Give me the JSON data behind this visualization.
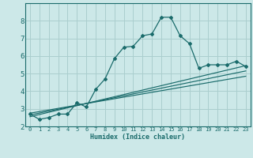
{
  "title": "",
  "xlabel": "Humidex (Indice chaleur)",
  "ylabel": "",
  "bg_color": "#cce8e8",
  "grid_color": "#aacece",
  "line_color": "#1a6b6b",
  "xlim": [
    -0.5,
    23.5
  ],
  "ylim": [
    2,
    9
  ],
  "yticks": [
    2,
    3,
    4,
    5,
    6,
    7,
    8
  ],
  "xticks": [
    0,
    1,
    2,
    3,
    4,
    5,
    6,
    7,
    8,
    9,
    10,
    11,
    12,
    13,
    14,
    15,
    16,
    17,
    18,
    19,
    20,
    21,
    22,
    23
  ],
  "main_x": [
    0,
    1,
    2,
    3,
    4,
    5,
    6,
    7,
    8,
    9,
    10,
    11,
    12,
    13,
    14,
    15,
    16,
    17,
    18,
    19,
    20,
    21,
    22,
    23
  ],
  "main_y": [
    2.7,
    2.4,
    2.5,
    2.7,
    2.7,
    3.35,
    3.1,
    4.1,
    4.7,
    5.85,
    6.5,
    6.55,
    7.15,
    7.25,
    8.2,
    8.2,
    7.15,
    6.7,
    5.3,
    5.5,
    5.5,
    5.5,
    5.7,
    5.4
  ],
  "reg_lines": [
    {
      "x0": 0,
      "y0": 2.55,
      "x1": 23,
      "y1": 5.45
    },
    {
      "x0": 0,
      "y0": 2.65,
      "x1": 23,
      "y1": 5.15
    },
    {
      "x0": 0,
      "y0": 2.75,
      "x1": 23,
      "y1": 4.85
    }
  ]
}
